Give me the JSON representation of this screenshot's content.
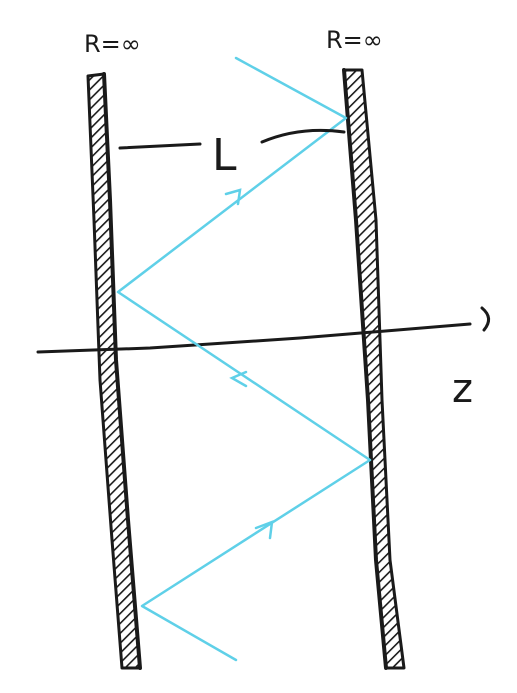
{
  "labels": {
    "left_mirror": "R=∞",
    "right_mirror": "R=∞",
    "separation": "L",
    "axis": "z"
  },
  "colors": {
    "ink": "#1a1a1a",
    "ray": "#5fd0e8"
  }
}
